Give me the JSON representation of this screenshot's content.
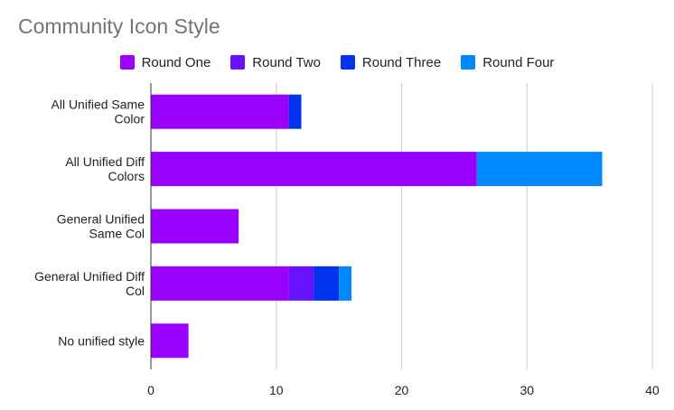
{
  "chart_data": {
    "type": "bar",
    "orientation": "horizontal",
    "stacked": true,
    "title": "Community Icon Style",
    "xlabel": "",
    "ylabel": "",
    "xlim": [
      0,
      40
    ],
    "x_ticks": [
      0,
      10,
      20,
      30,
      40
    ],
    "grid": "vertical",
    "legend_position": "top",
    "categories": [
      [
        "All Unified Same",
        "Color"
      ],
      [
        "All Unified Diff",
        "Colors"
      ],
      [
        "General Unified",
        "Same Col"
      ],
      [
        "General Unified Diff",
        "Col"
      ],
      [
        "No unified style"
      ]
    ],
    "series": [
      {
        "name": "Round One",
        "color": "#9900ff",
        "values": [
          11,
          26,
          7,
          11,
          3
        ]
      },
      {
        "name": "Round Two",
        "color": "#6611ff",
        "values": [
          0,
          0,
          0,
          2,
          0
        ]
      },
      {
        "name": "Round Three",
        "color": "#0033ee",
        "values": [
          1,
          0,
          0,
          2,
          0
        ]
      },
      {
        "name": "Round Four",
        "color": "#0088ff",
        "values": [
          0,
          10,
          0,
          1,
          0
        ]
      }
    ]
  }
}
